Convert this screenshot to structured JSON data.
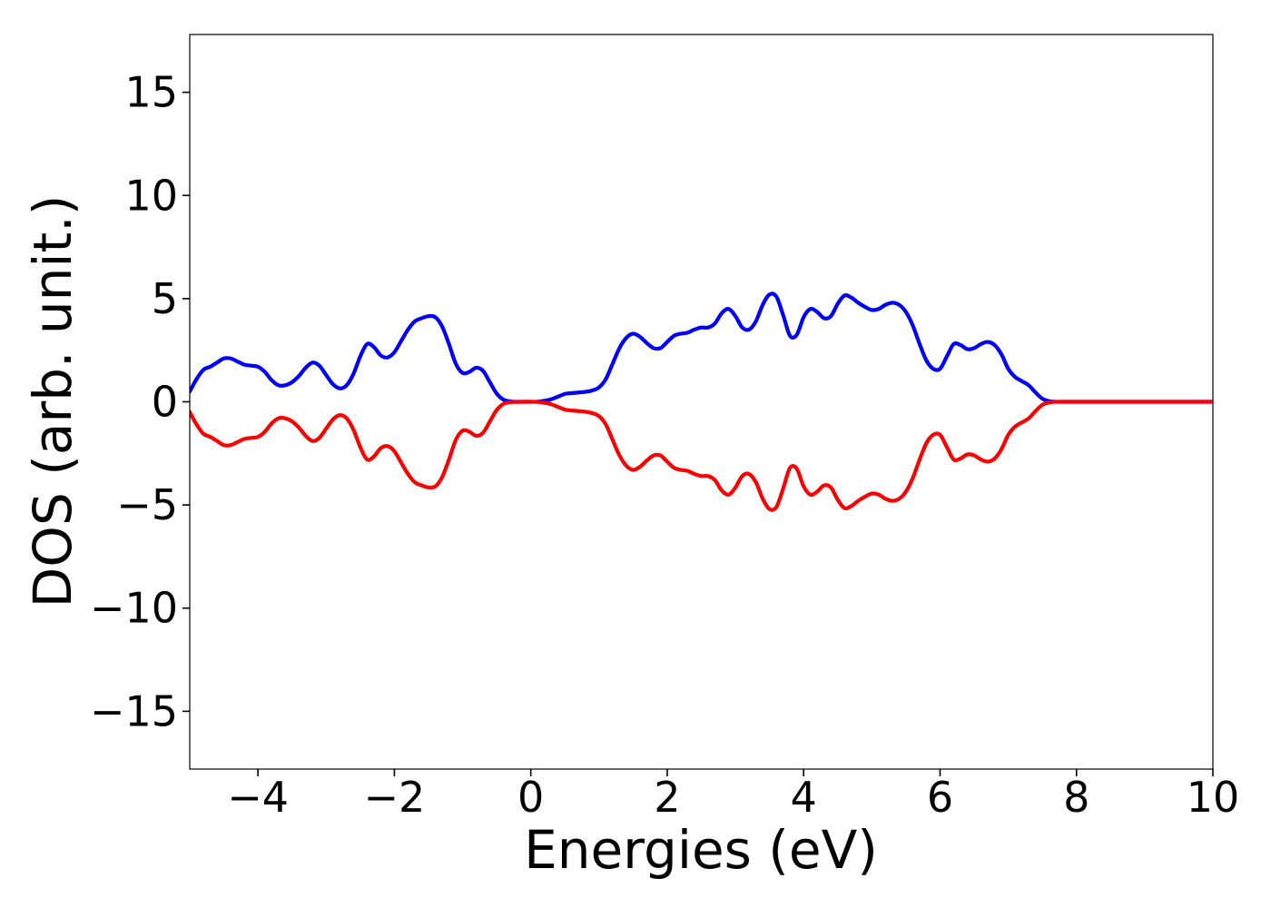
{
  "chart_data": {
    "type": "line",
    "title": "",
    "xlabel": "Energies (eV)",
    "ylabel": "DOS (arb. unit.)",
    "xlim": [
      -5,
      10
    ],
    "ylim": [
      -17.8,
      17.8
    ],
    "xticks": [
      -4,
      -2,
      0,
      2,
      4,
      6,
      8,
      10
    ],
    "xtick_labels": [
      "−4",
      "−2",
      "0",
      "2",
      "4",
      "6",
      "8",
      "10"
    ],
    "yticks": [
      15,
      10,
      5,
      0,
      -5,
      -10,
      -15
    ],
    "ytick_labels": [
      "15",
      "10",
      "5",
      "0",
      "−5",
      "−10",
      "−15"
    ],
    "grid": false,
    "series": [
      {
        "color": "#0000ff",
        "x": [
          -5.0,
          -4.9,
          -4.8,
          -4.7,
          -4.6,
          -4.5,
          -4.4,
          -4.3,
          -4.2,
          -4.1,
          -4.0,
          -3.9,
          -3.8,
          -3.7,
          -3.6,
          -3.5,
          -3.4,
          -3.3,
          -3.2,
          -3.1,
          -3.0,
          -2.9,
          -2.8,
          -2.7,
          -2.6,
          -2.5,
          -2.4,
          -2.3,
          -2.2,
          -2.1,
          -2.0,
          -1.9,
          -1.8,
          -1.7,
          -1.6,
          -1.5,
          -1.4,
          -1.3,
          -1.2,
          -1.1,
          -1.0,
          -0.9,
          -0.8,
          -0.7,
          -0.6,
          -0.5,
          -0.4,
          -0.3,
          -0.2,
          -0.1,
          0.0,
          0.1,
          0.2,
          0.3,
          0.4,
          0.5,
          0.6,
          0.7,
          0.8,
          0.9,
          1.0,
          1.1,
          1.2,
          1.3,
          1.4,
          1.5,
          1.6,
          1.7,
          1.8,
          1.9,
          2.0,
          2.1,
          2.2,
          2.3,
          2.4,
          2.5,
          2.6,
          2.7,
          2.8,
          2.9,
          3.0,
          3.1,
          3.2,
          3.3,
          3.4,
          3.5,
          3.6,
          3.7,
          3.8,
          3.9,
          4.0,
          4.1,
          4.2,
          4.3,
          4.4,
          4.5,
          4.6,
          4.7,
          4.8,
          4.9,
          5.0,
          5.1,
          5.2,
          5.3,
          5.4,
          5.5,
          5.6,
          5.7,
          5.8,
          5.9,
          6.0,
          6.1,
          6.2,
          6.3,
          6.4,
          6.5,
          6.6,
          6.7,
          6.8,
          6.9,
          7.0,
          7.1,
          7.2,
          7.3,
          7.4,
          7.5,
          7.6,
          7.7,
          7.8,
          7.9,
          8.0,
          8.1,
          8.2,
          8.3,
          8.4,
          8.5,
          8.6,
          8.7,
          8.8,
          8.9,
          9.0,
          9.2,
          9.4,
          9.6,
          9.8,
          10.0
        ],
        "y": [
          0.5,
          1.1,
          1.55,
          1.7,
          1.9,
          2.1,
          2.1,
          1.95,
          1.8,
          1.75,
          1.7,
          1.45,
          1.05,
          0.8,
          0.8,
          0.95,
          1.25,
          1.65,
          1.9,
          1.75,
          1.3,
          0.85,
          0.65,
          0.8,
          1.35,
          2.2,
          2.8,
          2.65,
          2.25,
          2.15,
          2.4,
          2.95,
          3.5,
          3.9,
          4.05,
          4.15,
          4.1,
          3.65,
          2.8,
          1.85,
          1.4,
          1.45,
          1.65,
          1.5,
          0.95,
          0.4,
          0.1,
          0.02,
          0.0,
          0.0,
          0.0,
          0.0,
          0.05,
          0.12,
          0.25,
          0.38,
          0.42,
          0.45,
          0.48,
          0.55,
          0.7,
          1.1,
          1.85,
          2.6,
          3.1,
          3.3,
          3.15,
          2.85,
          2.6,
          2.6,
          2.9,
          3.2,
          3.3,
          3.35,
          3.5,
          3.6,
          3.6,
          3.8,
          4.3,
          4.5,
          4.15,
          3.6,
          3.5,
          3.9,
          4.7,
          5.2,
          5.1,
          4.2,
          3.2,
          3.25,
          4.1,
          4.5,
          4.35,
          4.05,
          4.15,
          4.75,
          5.15,
          5.05,
          4.8,
          4.6,
          4.45,
          4.5,
          4.7,
          4.8,
          4.7,
          4.35,
          3.7,
          2.8,
          2.0,
          1.6,
          1.6,
          2.2,
          2.8,
          2.75,
          2.55,
          2.6,
          2.8,
          2.9,
          2.75,
          2.3,
          1.6,
          1.2,
          1.0,
          0.8,
          0.45,
          0.15,
          0.03,
          0.0,
          0.0,
          0.0,
          0.0,
          0.0,
          0.0,
          0.0,
          0.0,
          0.0,
          0.0,
          0.0,
          0.0,
          0.0,
          0.0,
          0.0,
          0.0,
          0.0,
          0.0,
          0.0
        ]
      },
      {
        "color": "#ff0000",
        "x": [
          -5.0,
          -4.9,
          -4.8,
          -4.7,
          -4.6,
          -4.5,
          -4.4,
          -4.3,
          -4.2,
          -4.1,
          -4.0,
          -3.9,
          -3.8,
          -3.7,
          -3.6,
          -3.5,
          -3.4,
          -3.3,
          -3.2,
          -3.1,
          -3.0,
          -2.9,
          -2.8,
          -2.7,
          -2.6,
          -2.5,
          -2.4,
          -2.3,
          -2.2,
          -2.1,
          -2.0,
          -1.9,
          -1.8,
          -1.7,
          -1.6,
          -1.5,
          -1.4,
          -1.3,
          -1.2,
          -1.1,
          -1.0,
          -0.9,
          -0.8,
          -0.7,
          -0.6,
          -0.5,
          -0.4,
          -0.3,
          -0.2,
          -0.1,
          0.0,
          0.1,
          0.2,
          0.3,
          0.4,
          0.5,
          0.6,
          0.7,
          0.8,
          0.9,
          1.0,
          1.1,
          1.2,
          1.3,
          1.4,
          1.5,
          1.6,
          1.7,
          1.8,
          1.9,
          2.0,
          2.1,
          2.2,
          2.3,
          2.4,
          2.5,
          2.6,
          2.7,
          2.8,
          2.9,
          3.0,
          3.1,
          3.2,
          3.3,
          3.4,
          3.5,
          3.6,
          3.7,
          3.8,
          3.9,
          4.0,
          4.1,
          4.2,
          4.3,
          4.4,
          4.5,
          4.6,
          4.7,
          4.8,
          4.9,
          5.0,
          5.1,
          5.2,
          5.3,
          5.4,
          5.5,
          5.6,
          5.7,
          5.8,
          5.9,
          6.0,
          6.1,
          6.2,
          6.3,
          6.4,
          6.5,
          6.6,
          6.7,
          6.8,
          6.9,
          7.0,
          7.1,
          7.2,
          7.3,
          7.4,
          7.5,
          7.6,
          7.7,
          7.8,
          7.9,
          8.0,
          8.1,
          8.2,
          8.3,
          8.4,
          8.5,
          8.6,
          8.7,
          8.8,
          8.9,
          9.0,
          9.2,
          9.4,
          9.6,
          9.8,
          10.0
        ],
        "y": [
          -0.5,
          -1.1,
          -1.55,
          -1.7,
          -1.9,
          -2.1,
          -2.1,
          -1.95,
          -1.8,
          -1.75,
          -1.7,
          -1.45,
          -1.05,
          -0.8,
          -0.8,
          -0.95,
          -1.25,
          -1.65,
          -1.9,
          -1.75,
          -1.3,
          -0.85,
          -0.65,
          -0.8,
          -1.35,
          -2.2,
          -2.8,
          -2.65,
          -2.25,
          -2.15,
          -2.4,
          -2.95,
          -3.5,
          -3.9,
          -4.05,
          -4.15,
          -4.1,
          -3.65,
          -2.8,
          -1.85,
          -1.4,
          -1.45,
          -1.65,
          -1.5,
          -0.95,
          -0.4,
          -0.1,
          -0.02,
          0.0,
          0.0,
          0.0,
          0.0,
          -0.05,
          -0.12,
          -0.25,
          -0.38,
          -0.42,
          -0.45,
          -0.48,
          -0.55,
          -0.7,
          -1.1,
          -1.85,
          -2.6,
          -3.1,
          -3.3,
          -3.15,
          -2.85,
          -2.6,
          -2.6,
          -2.9,
          -3.2,
          -3.3,
          -3.35,
          -3.5,
          -3.6,
          -3.6,
          -3.8,
          -4.3,
          -4.5,
          -4.15,
          -3.6,
          -3.5,
          -3.9,
          -4.7,
          -5.2,
          -5.1,
          -4.2,
          -3.2,
          -3.25,
          -4.1,
          -4.5,
          -4.35,
          -4.05,
          -4.15,
          -4.75,
          -5.15,
          -5.05,
          -4.8,
          -4.6,
          -4.45,
          -4.5,
          -4.7,
          -4.8,
          -4.7,
          -4.35,
          -3.7,
          -2.8,
          -2.0,
          -1.6,
          -1.6,
          -2.2,
          -2.8,
          -2.75,
          -2.55,
          -2.6,
          -2.8,
          -2.9,
          -2.75,
          -2.3,
          -1.6,
          -1.2,
          -1.0,
          -0.8,
          -0.45,
          -0.15,
          -0.03,
          0.0,
          0.0,
          0.0,
          0.0,
          0.0,
          0.0,
          0.0,
          0.0,
          0.0,
          0.0,
          0.0,
          0.0,
          0.0,
          0.0,
          0.0,
          0.0,
          0.0,
          0.0,
          0.0
        ]
      }
    ]
  }
}
